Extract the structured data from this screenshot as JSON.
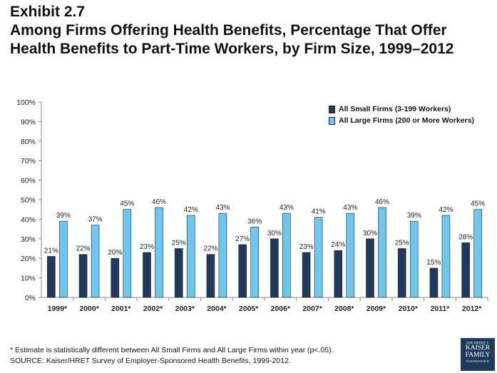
{
  "exhibit": "Exhibit 2.7",
  "title_line1": "Among Firms Offering Health Benefits, Percentage That Offer",
  "title_line2": "Health Benefits to Part-Time Workers, by Firm Size, 1999–2012",
  "legend": {
    "small": "All Small Firms (3-199 Workers)",
    "large": "All Large Firms (200 or More Workers)"
  },
  "colors": {
    "small": "#1f3a5c",
    "large": "#6cc8f0"
  },
  "footnote": "* Estimate is statistically different between All Small Firms and All Large Firms within year (p<.05).",
  "source": "SOURCE:  Kaiser/HRET Survey of Employer-Sponsored Health Benefits, 1999-2012.",
  "logo": {
    "line1": "THE HENRY J.",
    "line2": "KAISER",
    "line3": "FAMILY",
    "line4": "FOUNDATION"
  },
  "chart_data": {
    "type": "bar",
    "categories": [
      "1999*",
      "2000*",
      "2001*",
      "2002*",
      "2003*",
      "2004*",
      "2005*",
      "2006*",
      "2007*",
      "2008*",
      "2009*",
      "2010*",
      "2011*",
      "2012*"
    ],
    "series": [
      {
        "name": "All Small Firms (3-199 Workers)",
        "values": [
          21,
          22,
          20,
          23,
          25,
          22,
          27,
          30,
          23,
          24,
          30,
          25,
          15,
          28
        ]
      },
      {
        "name": "All Large Firms (200 or More Workers)",
        "values": [
          39,
          37,
          45,
          46,
          42,
          43,
          36,
          43,
          41,
          43,
          46,
          39,
          42,
          45
        ]
      }
    ],
    "ylim": [
      0,
      100
    ],
    "yticks": [
      "0%",
      "10%",
      "20%",
      "30%",
      "40%",
      "50%",
      "60%",
      "70%",
      "80%",
      "90%",
      "100%"
    ],
    "value_suffix": "%",
    "grid": false,
    "legend_position": "top-right"
  }
}
